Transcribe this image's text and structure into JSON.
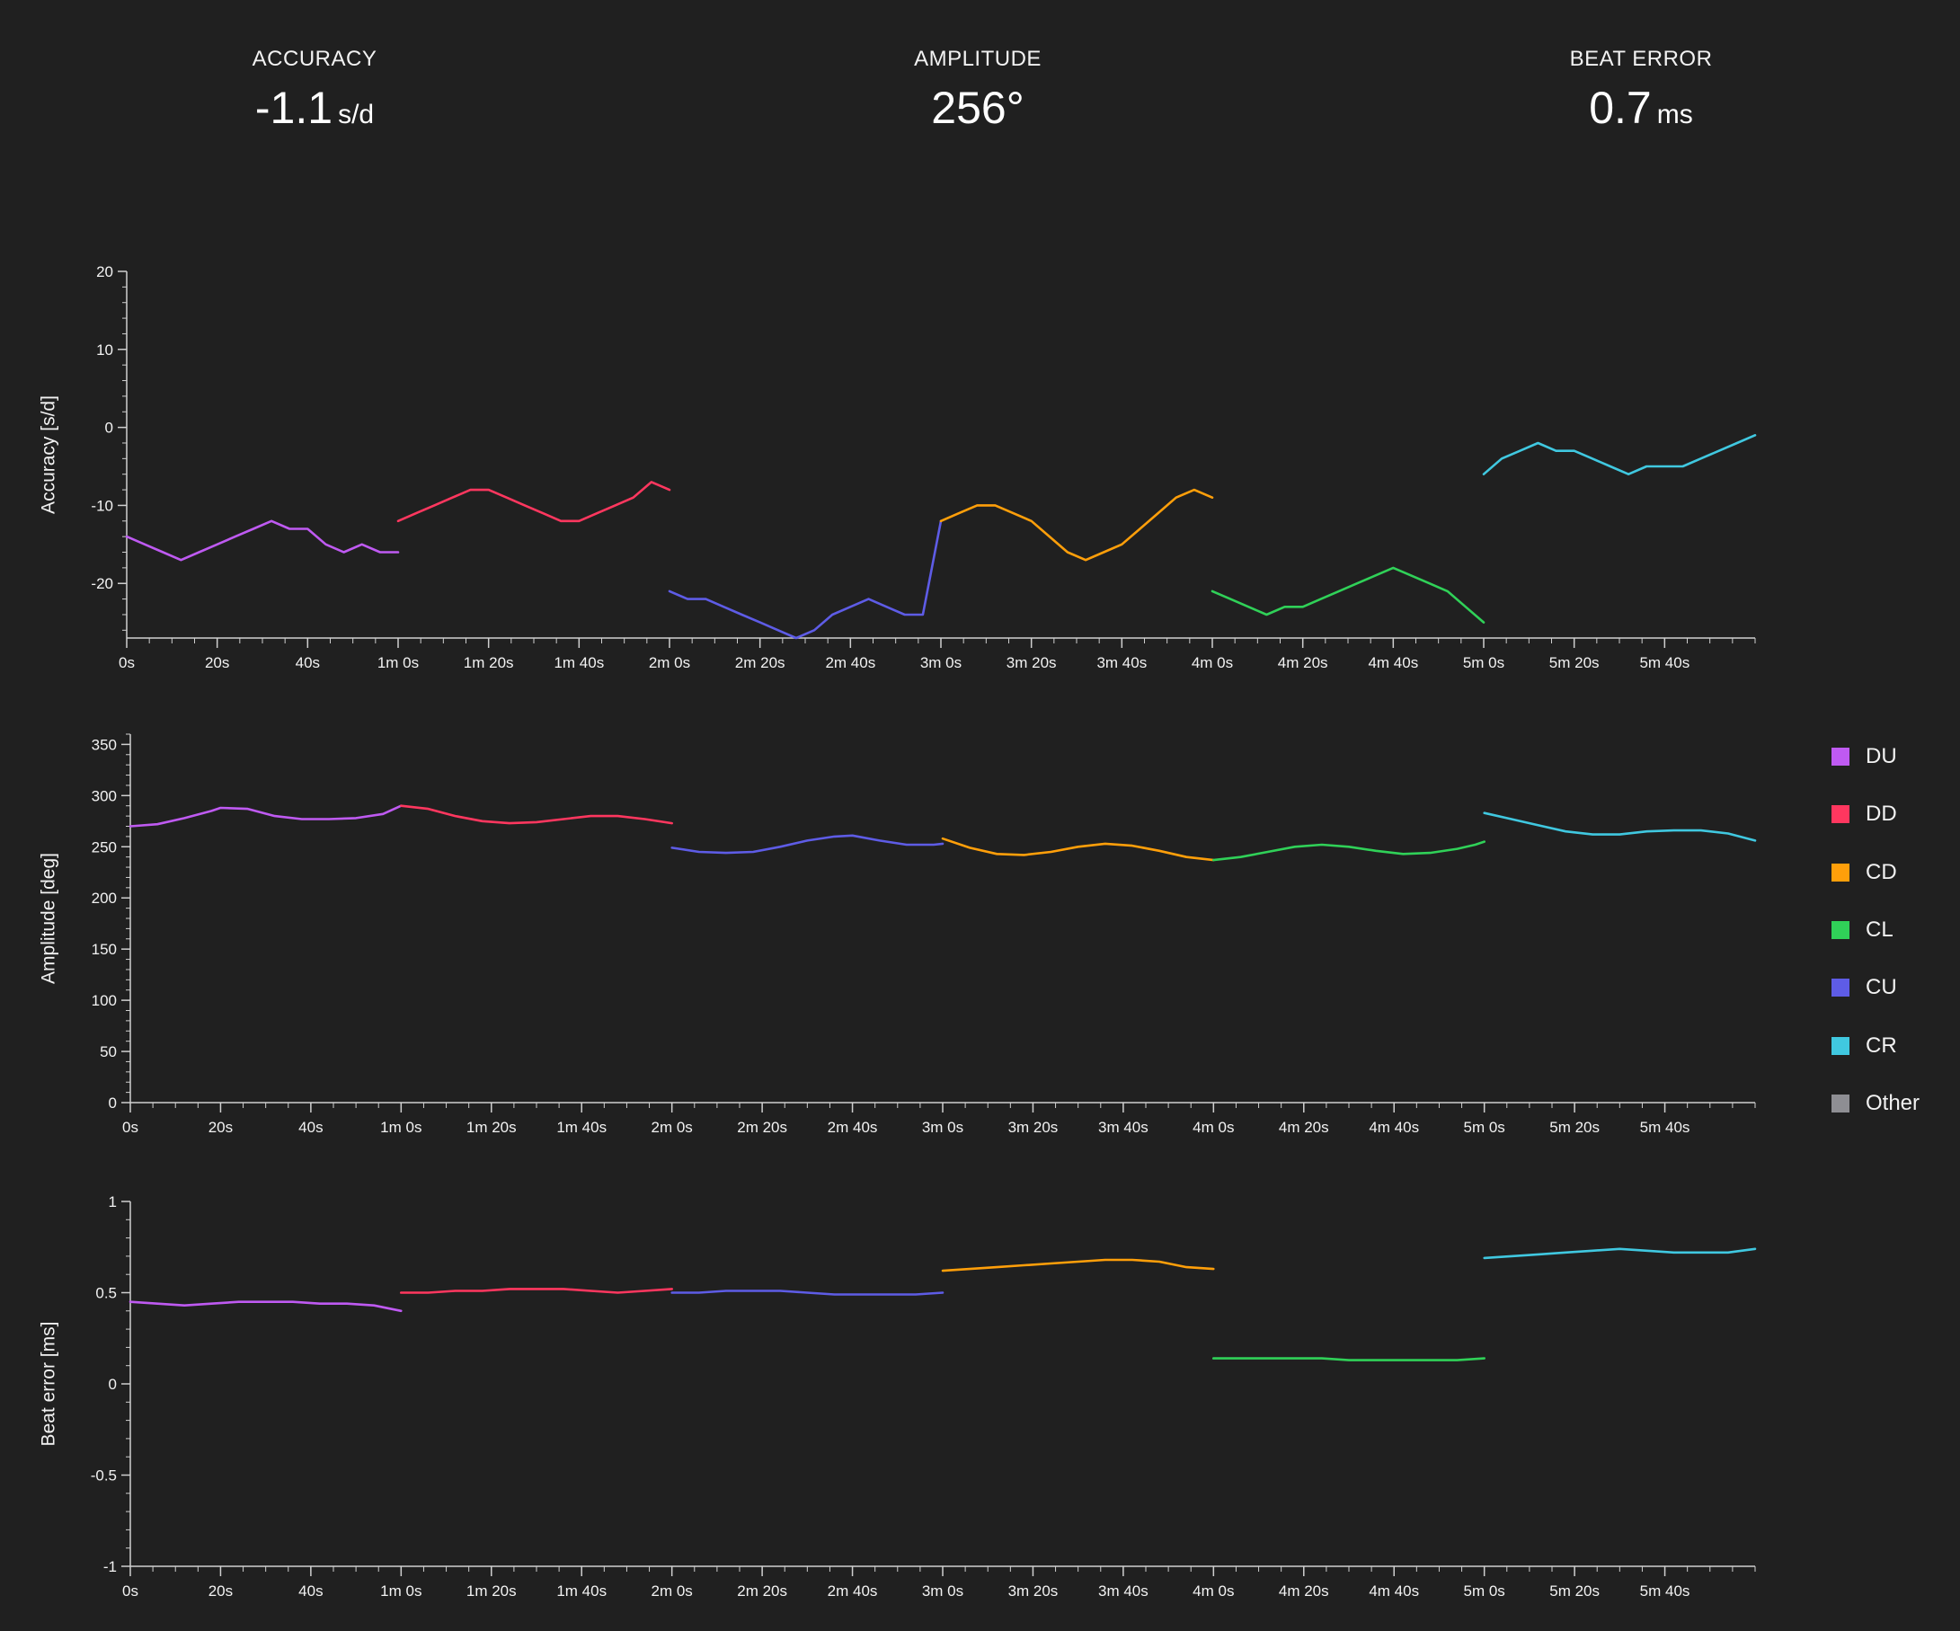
{
  "stats": {
    "accuracy": {
      "label": "ACCURACY",
      "value": "-1.1",
      "unit": "s/d"
    },
    "amplitude": {
      "label": "AMPLITUDE",
      "value": "256°",
      "unit": ""
    },
    "beat_error": {
      "label": "BEAT ERROR",
      "value": "0.7",
      "unit": "ms"
    }
  },
  "legend": [
    {
      "name": "DU",
      "color": "#bf5af2"
    },
    {
      "name": "DD",
      "color": "#ff375f"
    },
    {
      "name": "CD",
      "color": "#ff9f0a"
    },
    {
      "name": "CL",
      "color": "#30d158"
    },
    {
      "name": "CU",
      "color": "#5e5ce6"
    },
    {
      "name": "CR",
      "color": "#40c8e0"
    },
    {
      "name": "Other",
      "color": "#8e8e93"
    }
  ],
  "chart_data": [
    {
      "type": "line",
      "ylabel": "Accuracy [s/d]",
      "xlim": [
        0,
        360
      ],
      "ylim": [
        -27,
        20
      ],
      "yticks": [
        20,
        10,
        0,
        -10,
        -20
      ],
      "yticklabels": [
        "20",
        "10",
        "0",
        "-10",
        "-20"
      ],
      "xticks": [
        0,
        20,
        40,
        60,
        80,
        100,
        120,
        140,
        160,
        180,
        200,
        220,
        240,
        260,
        280,
        300,
        320,
        340
      ],
      "xticklabels": [
        "0s",
        "20s",
        "40s",
        "1m 0s",
        "1m 20s",
        "1m 40s",
        "2m 0s",
        "2m 20s",
        "2m 40s",
        "3m 0s",
        "3m 20s",
        "3m 40s",
        "4m 0s",
        "4m 20s",
        "4m 40s",
        "5m 0s",
        "5m 20s",
        "5m 40s"
      ],
      "series": [
        {
          "name": "DU",
          "color": "#bf5af2",
          "x": [
            0,
            4,
            8,
            12,
            16,
            20,
            24,
            28,
            32,
            36,
            40,
            44,
            48,
            52,
            56,
            60
          ],
          "y": [
            -14,
            -15,
            -16,
            -17,
            -16,
            -15,
            -14,
            -13,
            -12,
            -13,
            -13,
            -15,
            -16,
            -15,
            -16,
            -16
          ]
        },
        {
          "name": "DD",
          "color": "#ff375f",
          "x": [
            60,
            64,
            68,
            72,
            76,
            80,
            84,
            88,
            92,
            96,
            100,
            104,
            108,
            112,
            116,
            120
          ],
          "y": [
            -12,
            -11,
            -10,
            -9,
            -8,
            -8,
            -9,
            -10,
            -11,
            -12,
            -12,
            -11,
            -10,
            -9,
            -7,
            -8
          ]
        },
        {
          "name": "CU",
          "color": "#5e5ce6",
          "x": [
            120,
            124,
            128,
            132,
            136,
            140,
            144,
            148,
            152,
            156,
            160,
            164,
            168,
            172,
            176,
            180
          ],
          "y": [
            -21,
            -22,
            -22,
            -23,
            -24,
            -25,
            -26,
            -27,
            -26,
            -24,
            -23,
            -22,
            -23,
            -24,
            -24,
            -12
          ]
        },
        {
          "name": "CD",
          "color": "#ff9f0a",
          "x": [
            180,
            184,
            188,
            192,
            196,
            200,
            204,
            208,
            212,
            216,
            220,
            224,
            228,
            232,
            236,
            240
          ],
          "y": [
            -12,
            -11,
            -10,
            -10,
            -11,
            -12,
            -14,
            -16,
            -17,
            -16,
            -15,
            -13,
            -11,
            -9,
            -8,
            -9
          ]
        },
        {
          "name": "CL",
          "color": "#30d158",
          "x": [
            240,
            244,
            248,
            252,
            256,
            260,
            264,
            268,
            272,
            276,
            280,
            284,
            288,
            292,
            296,
            300
          ],
          "y": [
            -21,
            -22,
            -23,
            -24,
            -23,
            -23,
            -22,
            -21,
            -20,
            -19,
            -18,
            -19,
            -20,
            -21,
            -23,
            -25
          ]
        },
        {
          "name": "CR",
          "color": "#40c8e0",
          "x": [
            300,
            304,
            308,
            312,
            316,
            320,
            324,
            328,
            332,
            336,
            340,
            344,
            348,
            352,
            356,
            360
          ],
          "y": [
            -6,
            -4,
            -3,
            -2,
            -3,
            -3,
            -4,
            -5,
            -6,
            -5,
            -5,
            -5,
            -4,
            -3,
            -2,
            -1
          ]
        }
      ]
    },
    {
      "type": "line",
      "ylabel": "Amplitude [deg]",
      "xlim": [
        0,
        360
      ],
      "ylim": [
        0,
        360
      ],
      "yticks": [
        0,
        50,
        100,
        150,
        200,
        250,
        300,
        350
      ],
      "yticklabels": [
        "0",
        "50",
        "100",
        "150",
        "200",
        "250",
        "300",
        "350"
      ],
      "xticks": [
        0,
        20,
        40,
        60,
        80,
        100,
        120,
        140,
        160,
        180,
        200,
        220,
        240,
        260,
        280,
        300,
        320,
        340
      ],
      "xticklabels": [
        "0s",
        "20s",
        "40s",
        "1m 0s",
        "1m 20s",
        "1m 40s",
        "2m 0s",
        "2m 20s",
        "2m 40s",
        "3m 0s",
        "3m 20s",
        "3m 40s",
        "4m 0s",
        "4m 20s",
        "4m 40s",
        "5m 0s",
        "5m 20s",
        "5m 40s"
      ],
      "series": [
        {
          "name": "DU",
          "color": "#bf5af2",
          "x": [
            0,
            6,
            12,
            18,
            20,
            26,
            32,
            38,
            44,
            50,
            56,
            60
          ],
          "y": [
            270,
            272,
            278,
            285,
            288,
            287,
            280,
            277,
            277,
            278,
            282,
            290
          ]
        },
        {
          "name": "DD",
          "color": "#ff375f",
          "x": [
            60,
            66,
            72,
            78,
            84,
            90,
            96,
            102,
            108,
            114,
            120
          ],
          "y": [
            290,
            287,
            280,
            275,
            273,
            274,
            277,
            280,
            280,
            277,
            273
          ]
        },
        {
          "name": "CU",
          "color": "#5e5ce6",
          "x": [
            120,
            126,
            132,
            138,
            144,
            150,
            156,
            160,
            166,
            172,
            178,
            180
          ],
          "y": [
            249,
            245,
            244,
            245,
            250,
            256,
            260,
            261,
            256,
            252,
            252,
            253
          ]
        },
        {
          "name": "CD",
          "color": "#ff9f0a",
          "x": [
            180,
            186,
            192,
            198,
            204,
            210,
            216,
            222,
            228,
            234,
            240
          ],
          "y": [
            258,
            249,
            243,
            242,
            245,
            250,
            253,
            251,
            246,
            240,
            237
          ]
        },
        {
          "name": "CL",
          "color": "#30d158",
          "x": [
            240,
            246,
            252,
            258,
            264,
            270,
            276,
            282,
            288,
            294,
            298,
            300
          ],
          "y": [
            237,
            240,
            245,
            250,
            252,
            250,
            246,
            243,
            244,
            248,
            252,
            255
          ]
        },
        {
          "name": "CR",
          "color": "#40c8e0",
          "x": [
            300,
            306,
            312,
            318,
            324,
            330,
            336,
            342,
            348,
            354,
            360
          ],
          "y": [
            283,
            277,
            271,
            265,
            262,
            262,
            265,
            266,
            266,
            263,
            256
          ]
        }
      ]
    },
    {
      "type": "line",
      "ylabel": "Beat error [ms]",
      "xlim": [
        0,
        360
      ],
      "ylim": [
        -1,
        1
      ],
      "yticks": [
        1,
        0.5,
        0,
        -0.5,
        -1
      ],
      "yticklabels": [
        "1",
        "0.5",
        "0",
        "-0.5",
        "-1"
      ],
      "xticks": [
        0,
        20,
        40,
        60,
        80,
        100,
        120,
        140,
        160,
        180,
        200,
        220,
        240,
        260,
        280,
        300,
        320,
        340
      ],
      "xticklabels": [
        "0s",
        "20s",
        "40s",
        "1m 0s",
        "1m 20s",
        "1m 40s",
        "2m 0s",
        "2m 20s",
        "2m 40s",
        "3m 0s",
        "3m 20s",
        "3m 40s",
        "4m 0s",
        "4m 20s",
        "4m 40s",
        "5m 0s",
        "5m 20s",
        "5m 40s"
      ],
      "series": [
        {
          "name": "DU",
          "color": "#bf5af2",
          "x": [
            0,
            6,
            12,
            18,
            24,
            30,
            36,
            42,
            48,
            54,
            60
          ],
          "y": [
            0.45,
            0.44,
            0.43,
            0.44,
            0.45,
            0.45,
            0.45,
            0.44,
            0.44,
            0.43,
            0.4
          ]
        },
        {
          "name": "DD",
          "color": "#ff375f",
          "x": [
            60,
            66,
            72,
            78,
            84,
            90,
            96,
            102,
            108,
            114,
            120
          ],
          "y": [
            0.5,
            0.5,
            0.51,
            0.51,
            0.52,
            0.52,
            0.52,
            0.51,
            0.5,
            0.51,
            0.52
          ]
        },
        {
          "name": "CU",
          "color": "#5e5ce6",
          "x": [
            120,
            126,
            132,
            138,
            144,
            150,
            156,
            162,
            168,
            174,
            180
          ],
          "y": [
            0.5,
            0.5,
            0.51,
            0.51,
            0.51,
            0.5,
            0.49,
            0.49,
            0.49,
            0.49,
            0.5
          ]
        },
        {
          "name": "CD",
          "color": "#ff9f0a",
          "x": [
            180,
            186,
            192,
            198,
            204,
            210,
            216,
            222,
            228,
            234,
            240
          ],
          "y": [
            0.62,
            0.63,
            0.64,
            0.65,
            0.66,
            0.67,
            0.68,
            0.68,
            0.67,
            0.64,
            0.63
          ]
        },
        {
          "name": "CL",
          "color": "#30d158",
          "x": [
            240,
            246,
            252,
            258,
            264,
            270,
            276,
            282,
            288,
            294,
            300
          ],
          "y": [
            0.14,
            0.14,
            0.14,
            0.14,
            0.14,
            0.13,
            0.13,
            0.13,
            0.13,
            0.13,
            0.14
          ]
        },
        {
          "name": "CR",
          "color": "#40c8e0",
          "x": [
            300,
            306,
            312,
            318,
            324,
            330,
            336,
            342,
            348,
            354,
            360
          ],
          "y": [
            0.69,
            0.7,
            0.71,
            0.72,
            0.73,
            0.74,
            0.73,
            0.72,
            0.72,
            0.72,
            0.74
          ]
        }
      ]
    }
  ]
}
